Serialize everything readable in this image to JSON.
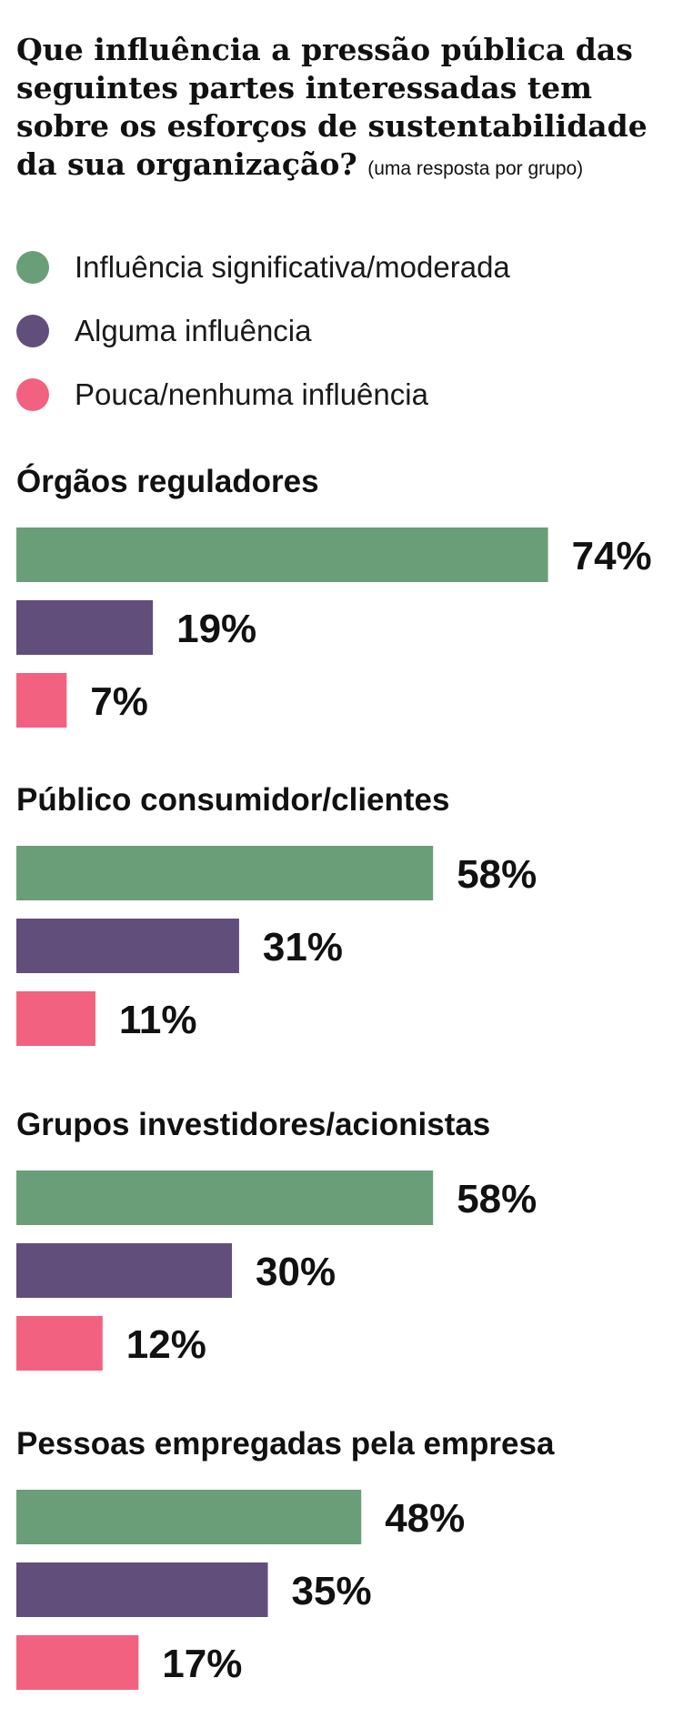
{
  "chart_data": {
    "type": "bar",
    "orientation": "horizontal",
    "title": "Que influência a pressão pública das seguintes partes interessadas tem sobre os esforços de sustentabilidade da sua organização?",
    "subtitle": "(uma resposta por grupo)",
    "categories": [
      "Órgãos reguladores",
      "Público consumidor/clientes",
      "Grupos investidores/acionistas",
      "Pessoas empregadas pela empresa"
    ],
    "series": [
      {
        "name": "Influência significativa/moderada",
        "color": "#6a9e78",
        "values": [
          74,
          58,
          58,
          48
        ]
      },
      {
        "name": "Alguma influência",
        "color": "#614e7b",
        "values": [
          19,
          31,
          30,
          35
        ]
      },
      {
        "name": "Pouca/nenhuma influência",
        "color": "#f2617f",
        "values": [
          7,
          11,
          12,
          17
        ]
      }
    ],
    "value_suffix": "%",
    "xlim": [
      0,
      100
    ],
    "legend_position": "top-left"
  }
}
